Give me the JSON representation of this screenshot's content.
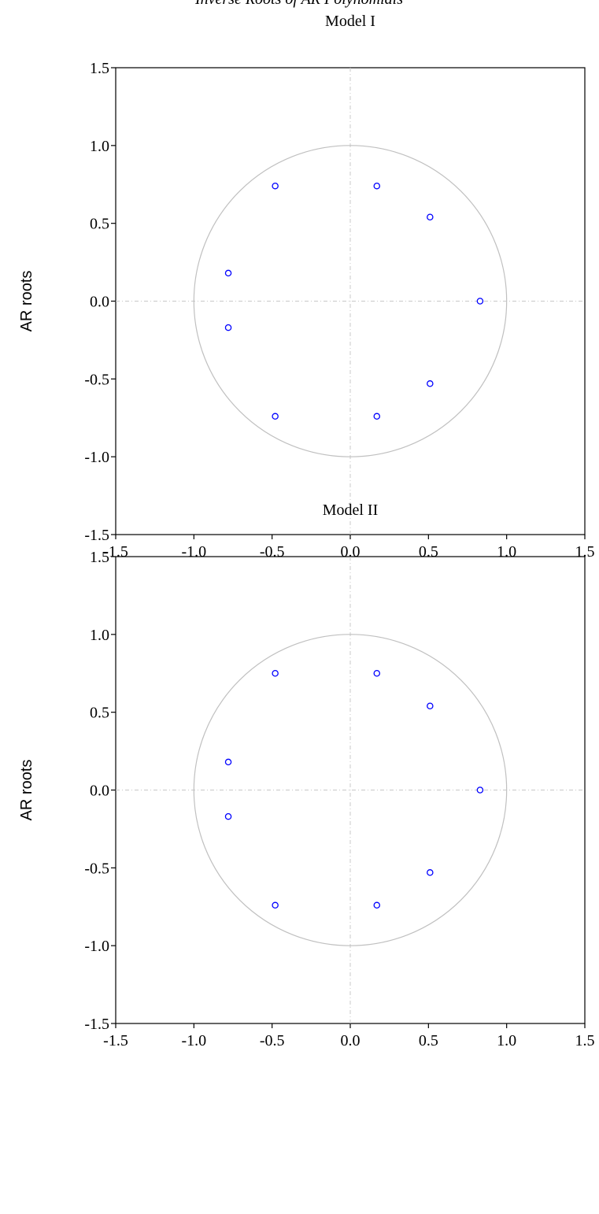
{
  "page_title": "Inverse Roots of AR Polynomials",
  "chart_data": [
    {
      "type": "scatter",
      "title": "Model I",
      "xlabel": "",
      "ylabel": "AR roots",
      "xlim": [
        -1.5,
        1.5
      ],
      "ylim": [
        -1.5,
        1.5
      ],
      "xticks": [
        "-1.5",
        "-1.0",
        "-0.5",
        "0.0",
        "0.5",
        "1.0",
        "1.5"
      ],
      "yticks": [
        "1.5",
        "1.0",
        "0.5",
        "0.0",
        "-0.5",
        "-1.0",
        "-1.5"
      ],
      "unit_circle": true,
      "grid": false,
      "point_color": "#0000ff",
      "circle_color": "#c0c0c0",
      "x": [
        -0.48,
        0.17,
        0.51,
        -0.78,
        0.83,
        -0.78,
        0.51,
        -0.48,
        0.17
      ],
      "y": [
        0.74,
        0.74,
        0.54,
        0.18,
        0.0,
        -0.17,
        -0.53,
        -0.74,
        -0.74
      ]
    },
    {
      "type": "scatter",
      "title": "Model II",
      "xlabel": "",
      "ylabel": "AR roots",
      "xlim": [
        -1.5,
        1.5
      ],
      "ylim": [
        -1.5,
        1.5
      ],
      "xticks": [
        "-1.5",
        "-1.0",
        "-0.5",
        "0.0",
        "0.5",
        "1.0",
        "1.5"
      ],
      "yticks": [
        "1.5",
        "1.0",
        "0.5",
        "0.0",
        "-0.5",
        "-1.0",
        "-1.5"
      ],
      "unit_circle": true,
      "grid": false,
      "point_color": "#0000ff",
      "circle_color": "#c0c0c0",
      "x": [
        -0.48,
        0.17,
        0.51,
        -0.78,
        0.83,
        -0.78,
        0.51,
        -0.48,
        0.17
      ],
      "y": [
        0.75,
        0.75,
        0.54,
        0.18,
        0.0,
        -0.17,
        -0.53,
        -0.74,
        -0.74
      ]
    }
  ]
}
